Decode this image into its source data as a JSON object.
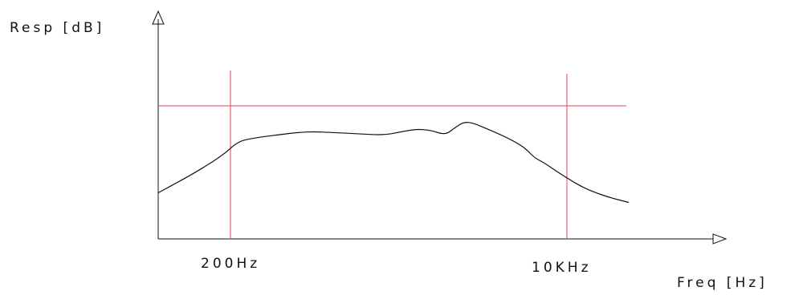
{
  "chart_data": {
    "type": "line",
    "ylabel": "Resp [dB]",
    "xlabel": "Freq [Hz]",
    "annotations": [
      "200Hz",
      "10KHz"
    ],
    "reference_lines": {
      "x": [
        "200Hz",
        "10KHz"
      ]
    },
    "colors": {
      "curve": "#111111",
      "reference": "#e04050",
      "axes": "#111111"
    },
    "series": [
      {
        "x": [
          0.0,
          0.08,
          0.14,
          0.17,
          0.21,
          0.27,
          0.32,
          0.38,
          0.43,
          0.48,
          0.52,
          0.55,
          0.58,
          0.61,
          0.63,
          0.65,
          0.67,
          0.7,
          0.73,
          0.76,
          0.78,
          0.8,
          0.82,
          0.85,
          0.87,
          0.9,
          0.93,
          0.96,
          1.0
        ],
        "y": [
          0.13,
          0.3,
          0.45,
          0.56,
          0.59,
          0.62,
          0.64,
          0.63,
          0.62,
          0.61,
          0.64,
          0.66,
          0.65,
          0.61,
          0.67,
          0.72,
          0.71,
          0.66,
          0.61,
          0.55,
          0.5,
          0.42,
          0.38,
          0.3,
          0.25,
          0.18,
          0.13,
          0.09,
          0.05
        ]
      }
    ],
    "ylim": [
      0,
      1
    ],
    "xlim": [
      0,
      1
    ],
    "grid": false
  }
}
